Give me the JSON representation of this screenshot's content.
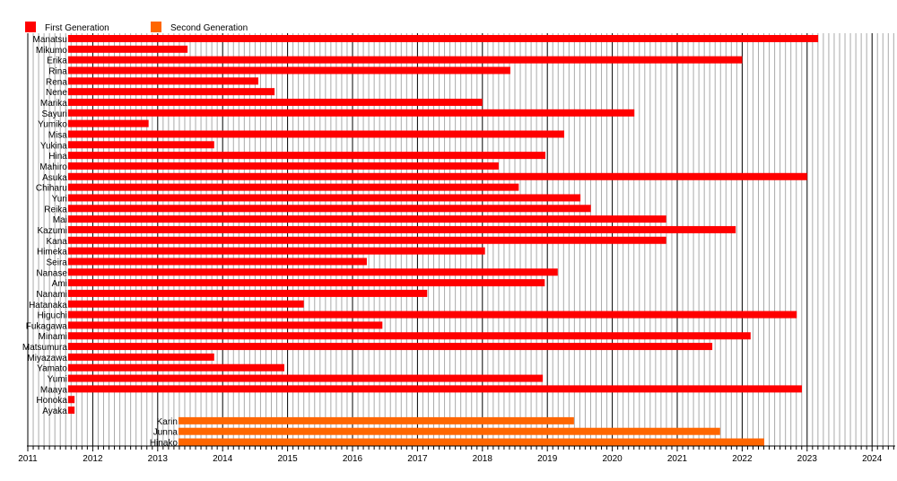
{
  "chart_data": {
    "type": "bar",
    "subtype": "timeline",
    "title": "",
    "xlabel": "",
    "ylabel": "",
    "xlim": [
      2011,
      2024.35
    ],
    "x_ticks": [
      "2011",
      "2012",
      "2013",
      "2014",
      "2015",
      "2016",
      "2017",
      "2018",
      "2019",
      "2020",
      "2021",
      "2022",
      "2023",
      "2024"
    ],
    "grid": "vertical, monthly minor, yearly major",
    "legend": {
      "placement": "top-left",
      "entries": [
        {
          "label": "First Generation",
          "color": "#ff0000"
        },
        {
          "label": "Second Generation",
          "color": "#ff6600"
        }
      ]
    },
    "series": [
      {
        "name": "First Generation",
        "color": "#ff0000",
        "items": [
          {
            "label": "Manatsu",
            "start": 2011.62,
            "end": 2023.17
          },
          {
            "label": "Mikumo",
            "start": 2011.62,
            "end": 2013.46
          },
          {
            "label": "Erika",
            "start": 2011.62,
            "end": 2022.0
          },
          {
            "label": "Rina",
            "start": 2011.62,
            "end": 2018.43
          },
          {
            "label": "Rena",
            "start": 2011.62,
            "end": 2014.55
          },
          {
            "label": "Nene",
            "start": 2011.62,
            "end": 2014.8
          },
          {
            "label": "Marika",
            "start": 2011.62,
            "end": 2018.0
          },
          {
            "label": "Sayuri",
            "start": 2011.62,
            "end": 2020.34
          },
          {
            "label": "Yumiko",
            "start": 2011.62,
            "end": 2012.86
          },
          {
            "label": "Misa",
            "start": 2011.62,
            "end": 2019.26
          },
          {
            "label": "Yukina",
            "start": 2011.62,
            "end": 2013.87
          },
          {
            "label": "Hina",
            "start": 2011.62,
            "end": 2018.97
          },
          {
            "label": "Mahiro",
            "start": 2011.62,
            "end": 2018.25
          },
          {
            "label": "Asuka",
            "start": 2011.62,
            "end": 2023.0
          },
          {
            "label": "Chiharu",
            "start": 2011.62,
            "end": 2018.56
          },
          {
            "label": "Yuri",
            "start": 2011.62,
            "end": 2019.51
          },
          {
            "label": "Reika",
            "start": 2011.62,
            "end": 2019.67
          },
          {
            "label": "Mai",
            "start": 2011.62,
            "end": 2020.83
          },
          {
            "label": "Kazumi",
            "start": 2011.62,
            "end": 2021.9
          },
          {
            "label": "Kana",
            "start": 2011.62,
            "end": 2020.83
          },
          {
            "label": "Himeka",
            "start": 2011.62,
            "end": 2018.04
          },
          {
            "label": "Seira",
            "start": 2011.62,
            "end": 2016.22
          },
          {
            "label": "Nanase",
            "start": 2011.62,
            "end": 2019.16
          },
          {
            "label": "Ami",
            "start": 2011.62,
            "end": 2018.96
          },
          {
            "label": "Nanami",
            "start": 2011.62,
            "end": 2017.15
          },
          {
            "label": "Hatanaka",
            "start": 2011.62,
            "end": 2015.25
          },
          {
            "label": "Higuchi",
            "start": 2011.62,
            "end": 2022.84
          },
          {
            "label": "Fukagawa",
            "start": 2011.62,
            "end": 2016.46
          },
          {
            "label": "Minami",
            "start": 2011.62,
            "end": 2022.13
          },
          {
            "label": "Matsumura",
            "start": 2011.62,
            "end": 2021.54
          },
          {
            "label": "Miyazawa",
            "start": 2011.62,
            "end": 2013.87
          },
          {
            "label": "Yamato",
            "start": 2011.62,
            "end": 2014.95
          },
          {
            "label": "Yumi",
            "start": 2011.62,
            "end": 2018.93
          },
          {
            "label": "Maaya",
            "start": 2011.62,
            "end": 2022.92
          },
          {
            "label": "Honoka",
            "start": 2011.62,
            "end": 2011.72
          },
          {
            "label": "Ayaka",
            "start": 2011.62,
            "end": 2011.72
          }
        ]
      },
      {
        "name": "Second Generation",
        "color": "#ff6600",
        "items": [
          {
            "label": "Karin",
            "start": 2013.32,
            "end": 2019.41
          },
          {
            "label": "Junna",
            "start": 2013.32,
            "end": 2021.66
          },
          {
            "label": "Hinako",
            "start": 2013.32,
            "end": 2022.34
          }
        ]
      }
    ]
  }
}
